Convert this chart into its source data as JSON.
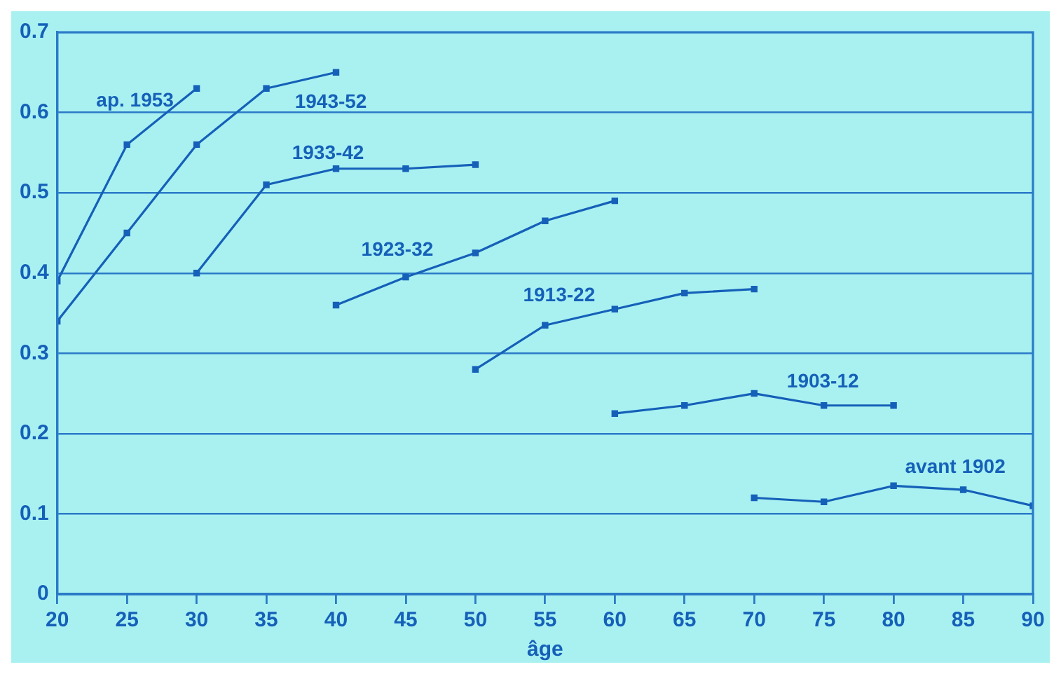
{
  "chart_data": {
    "type": "line",
    "xlabel": "âge",
    "xlim": [
      20,
      90
    ],
    "xticks": [
      20,
      25,
      30,
      35,
      40,
      45,
      50,
      55,
      60,
      65,
      70,
      75,
      80,
      85,
      90
    ],
    "ylim": [
      0,
      0.7
    ],
    "yticks": [
      0,
      0.1,
      0.2,
      0.3,
      0.4,
      0.5,
      0.6,
      0.7
    ],
    "grid": "y",
    "marker": "square",
    "line_style": "solid",
    "series": [
      {
        "name": "ap. 1953",
        "color": "#1560b8",
        "x": [
          20,
          25,
          30
        ],
        "values": [
          0.39,
          0.56,
          0.63
        ]
      },
      {
        "name": "1943-52",
        "color": "#1560b8",
        "x": [
          20,
          25,
          30,
          35,
          40
        ],
        "values": [
          0.34,
          0.45,
          0.56,
          0.63,
          0.65
        ]
      },
      {
        "name": "1933-42",
        "color": "#1560b8",
        "x": [
          30,
          35,
          40,
          45,
          50
        ],
        "values": [
          0.4,
          0.51,
          0.53,
          0.53,
          0.535
        ]
      },
      {
        "name": "1923-32",
        "color": "#1560b8",
        "x": [
          40,
          45,
          50,
          55,
          60
        ],
        "values": [
          0.36,
          0.395,
          0.425,
          0.465,
          0.49
        ]
      },
      {
        "name": "1913-22",
        "color": "#1560b8",
        "x": [
          50,
          55,
          60,
          65,
          70
        ],
        "values": [
          0.28,
          0.335,
          0.355,
          0.375,
          0.38
        ]
      },
      {
        "name": "1903-12",
        "color": "#1560b8",
        "x": [
          60,
          65,
          70,
          75,
          80
        ],
        "values": [
          0.225,
          0.235,
          0.25,
          0.235,
          0.235
        ]
      },
      {
        "name": "avant 1902",
        "color": "#1560b8",
        "x": [
          70,
          75,
          80,
          85,
          90
        ],
        "values": [
          0.12,
          0.115,
          0.135,
          0.13,
          0.11
        ]
      }
    ]
  }
}
